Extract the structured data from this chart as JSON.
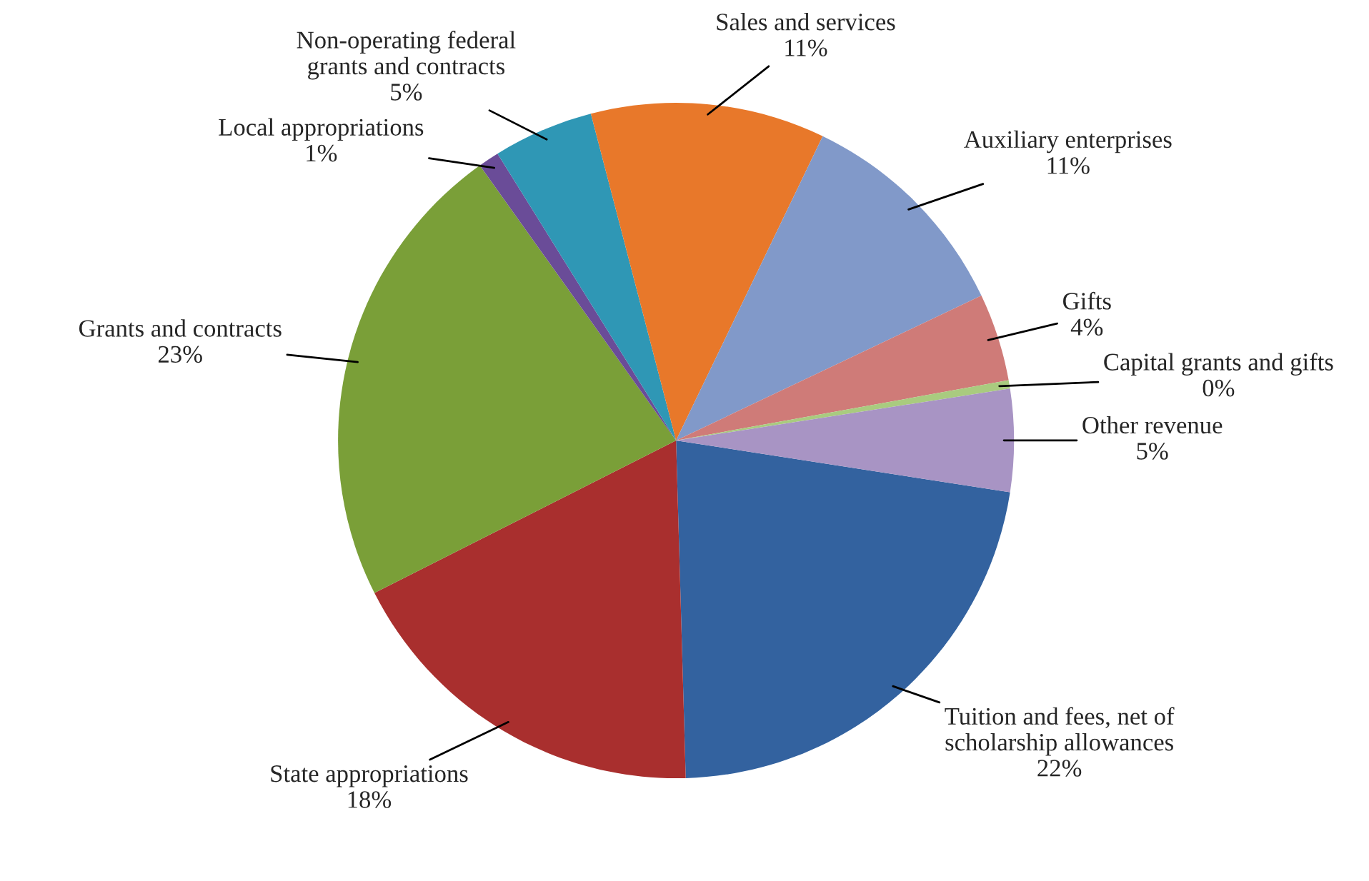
{
  "chart_data": {
    "type": "pie",
    "categories": [
      "Tuition and fees, net of\nscholarship allowances",
      "State appropriations",
      "Grants and contracts",
      "Local appropriations",
      "Non-operating federal\ngrants and contracts",
      "Sales and services",
      "Auxiliary enterprises",
      "Gifts",
      "Capital grants and gifts",
      "Other revenue"
    ],
    "values": [
      22.1,
      18.0,
      22.6,
      1.0,
      4.8,
      11.2,
      10.8,
      4.2,
      0.4,
      4.9
    ],
    "value_labels": [
      "22%",
      "18%",
      "23%",
      "1%",
      "5%",
      "11%",
      "11%",
      "4%",
      "0%",
      "5%"
    ],
    "colors": [
      "#33629f",
      "#a92f2e",
      "#7a9f38",
      "#6a4c98",
      "#2f97b5",
      "#e8782a",
      "#8199c9",
      "#cf7b78",
      "#a9cb7f",
      "#a894c4"
    ]
  }
}
